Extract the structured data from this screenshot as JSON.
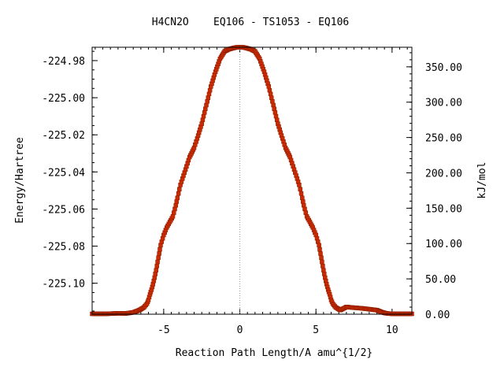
{
  "chart_data": {
    "type": "line",
    "title": "H4CN2O    EQ106 - TS1053 - EQ106",
    "xlabel": "Reaction Path Length/A amu^{1/2}",
    "ylabel": "Energy/Hartree",
    "y2label": "kJ/mol",
    "xlim": [
      -9.7,
      11.3
    ],
    "ylim": [
      -225.1167,
      -224.9728
    ],
    "y2lim": [
      0.0,
      377.7
    ],
    "x_ticks": [
      -5,
      0,
      5,
      10
    ],
    "x_tick_labels": [
      "-5",
      "0",
      "5",
      "10"
    ],
    "y_ticks": [
      -224.98,
      -225.0,
      -225.02,
      -225.04,
      -225.06,
      -225.08,
      -225.1
    ],
    "y_tick_labels": [
      "-224.98",
      "-225.00",
      "-225.02",
      "-225.04",
      "-225.06",
      "-225.08",
      "-225.10"
    ],
    "y2_ticks": [
      0,
      50,
      100,
      150,
      200,
      250,
      300,
      350
    ],
    "y2_tick_labels": [
      "0.00",
      "50.00",
      "100.00",
      "150.00",
      "200.00",
      "250.00",
      "300.00",
      "350.00"
    ],
    "ts_x": 0,
    "line_color": "#00a000",
    "marker_color": "#cc2a00",
    "vline_color": "#999999",
    "series": [
      {
        "x": [
          -9.7,
          -9.0,
          -8.5,
          -8.0,
          -7.5,
          -7.0,
          -6.6,
          -6.3,
          -6.1,
          -6.0,
          -5.9,
          -5.8,
          -5.7,
          -5.6,
          -5.5,
          -5.4,
          -5.3,
          -5.2,
          -5.0,
          -4.8,
          -4.6,
          -4.4,
          -4.2,
          -4.1,
          -3.9,
          -3.7,
          -3.5,
          -3.3,
          -3.0,
          -2.8,
          -2.5,
          -2.2,
          -1.9,
          -1.6,
          -1.3,
          -1.0,
          -0.7,
          -0.4,
          -0.2,
          0.0,
          0.2,
          0.4,
          0.7,
          1.0,
          1.3,
          1.6,
          1.9,
          2.2,
          2.5,
          2.8,
          3.0,
          3.3,
          3.5,
          3.7,
          3.9,
          4.1,
          4.2,
          4.4,
          4.6,
          4.8,
          5.0,
          5.2,
          5.3,
          5.4,
          5.5,
          5.6,
          5.7,
          5.8,
          5.9,
          6.0,
          6.1,
          6.3,
          6.6,
          7.0,
          7.5,
          8.0,
          8.5,
          9.0,
          9.3,
          9.6,
          10.0,
          10.5,
          11.0,
          11.3
        ],
        "y": [
          -225.1165,
          -225.1165,
          -225.1164,
          -225.1162,
          -225.1163,
          -225.1157,
          -225.1145,
          -225.113,
          -225.111,
          -225.109,
          -225.106,
          -225.1035,
          -225.1005,
          -225.097,
          -225.093,
          -225.0885,
          -225.084,
          -225.0795,
          -225.074,
          -225.07,
          -225.067,
          -225.064,
          -225.058,
          -225.054,
          -225.047,
          -225.042,
          -225.037,
          -225.032,
          -225.027,
          -225.022,
          -225.014,
          -225.004,
          -224.994,
          -224.986,
          -224.979,
          -224.975,
          -224.9738,
          -224.9732,
          -224.9728,
          -224.9728,
          -224.9728,
          -224.9732,
          -224.9738,
          -224.975,
          -224.979,
          -224.986,
          -224.994,
          -225.004,
          -225.014,
          -225.022,
          -225.027,
          -225.032,
          -225.037,
          -225.042,
          -225.047,
          -225.054,
          -225.058,
          -225.064,
          -225.067,
          -225.07,
          -225.074,
          -225.0795,
          -225.084,
          -225.0885,
          -225.093,
          -225.097,
          -225.1005,
          -225.1035,
          -225.106,
          -225.109,
          -225.111,
          -225.113,
          -225.1145,
          -225.1128,
          -225.1132,
          -225.1135,
          -225.114,
          -225.1145,
          -225.1155,
          -225.1162,
          -225.1165,
          -225.1165,
          -225.1165,
          -225.1165
        ]
      }
    ]
  }
}
